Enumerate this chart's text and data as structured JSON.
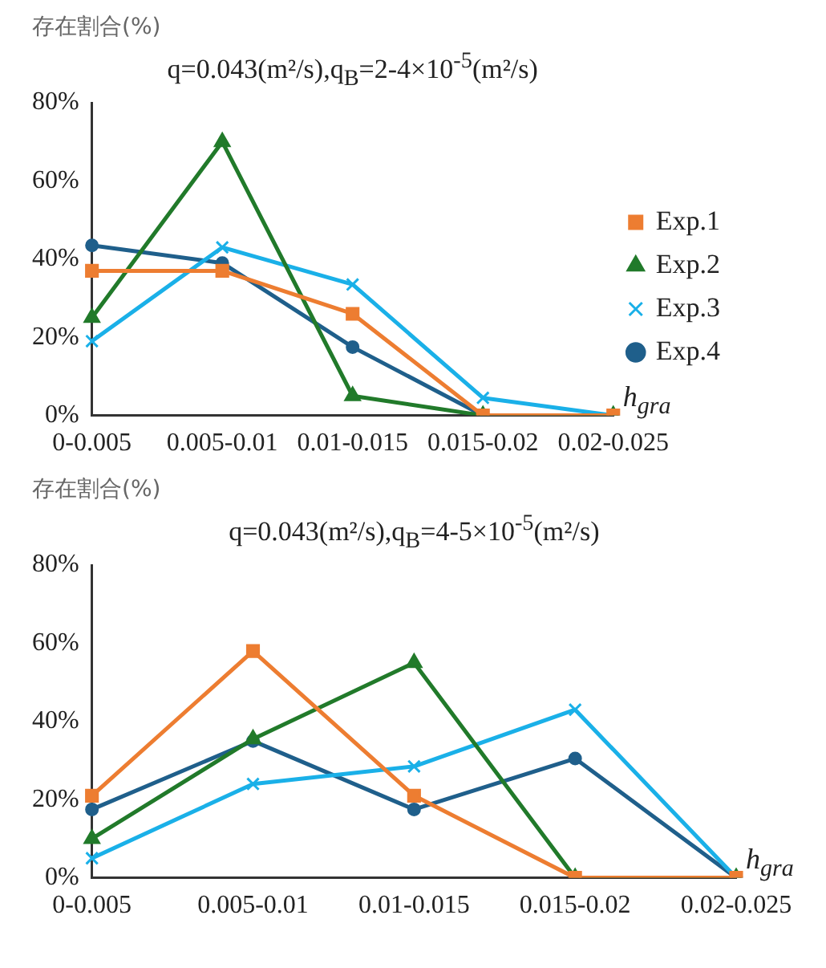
{
  "chart_data": [
    {
      "type": "line",
      "title": "q=0.043(m²/s),q$_{B}$=2-4×10$^{-5}$(m²/s)",
      "ylabel": "存在割合(%)",
      "xlabel": "h$_{gra}$",
      "categories": [
        "0-0.005",
        "0.005-0.01",
        "0.01-0.015",
        "0.015-0.02",
        "0.02-0.025"
      ],
      "ylim": [
        0,
        80
      ],
      "yticks": [
        {
          "value": 0,
          "label": "0%"
        },
        {
          "value": 20,
          "label": "20%"
        },
        {
          "value": 40,
          "label": "40%"
        },
        {
          "value": 60,
          "label": "60%"
        },
        {
          "value": 80,
          "label": "80%"
        }
      ],
      "legend": "right",
      "series": [
        {
          "name": "Exp.1",
          "color": "#ed7d31",
          "marker": "square",
          "values": [
            37,
            37,
            26,
            0,
            0
          ]
        },
        {
          "name": "Exp.2",
          "color": "#217a2a",
          "marker": "triangle",
          "values": [
            25,
            70,
            5,
            0,
            0
          ]
        },
        {
          "name": "Exp.3",
          "color": "#1ab0e8",
          "marker": "cross",
          "values": [
            19,
            43,
            33.5,
            4.5,
            0
          ]
        },
        {
          "name": "Exp.4",
          "color": "#1f5f8b",
          "marker": "circle",
          "values": [
            43.5,
            39,
            17.5,
            0,
            0
          ]
        }
      ]
    },
    {
      "type": "line",
      "title": "q=0.043(m²/s),q$_{B}$=4-5×10$^{-5}$(m²/s)",
      "ylabel": "存在割合(%)",
      "xlabel": "h$_{gra}$",
      "categories": [
        "0-0.005",
        "0.005-0.01",
        "0.01-0.015",
        "0.015-0.02",
        "0.02-0.025"
      ],
      "ylim": [
        0,
        80
      ],
      "yticks": [
        {
          "value": 0,
          "label": "0%"
        },
        {
          "value": 20,
          "label": "20%"
        },
        {
          "value": 40,
          "label": "40%"
        },
        {
          "value": 60,
          "label": "60%"
        },
        {
          "value": 80,
          "label": "80%"
        }
      ],
      "series": [
        {
          "color": "#ed7d31",
          "marker": "square",
          "values": [
            21,
            58,
            21,
            0,
            0
          ]
        },
        {
          "color": "#217a2a",
          "marker": "triangle",
          "values": [
            10,
            35.5,
            55,
            0,
            0
          ]
        },
        {
          "color": "#1ab0e8",
          "marker": "cross",
          "values": [
            5,
            24,
            28.5,
            43,
            0
          ]
        },
        {
          "color": "#1f5f8b",
          "marker": "circle",
          "values": [
            17.5,
            35,
            17.5,
            30.5,
            0
          ]
        }
      ]
    }
  ]
}
